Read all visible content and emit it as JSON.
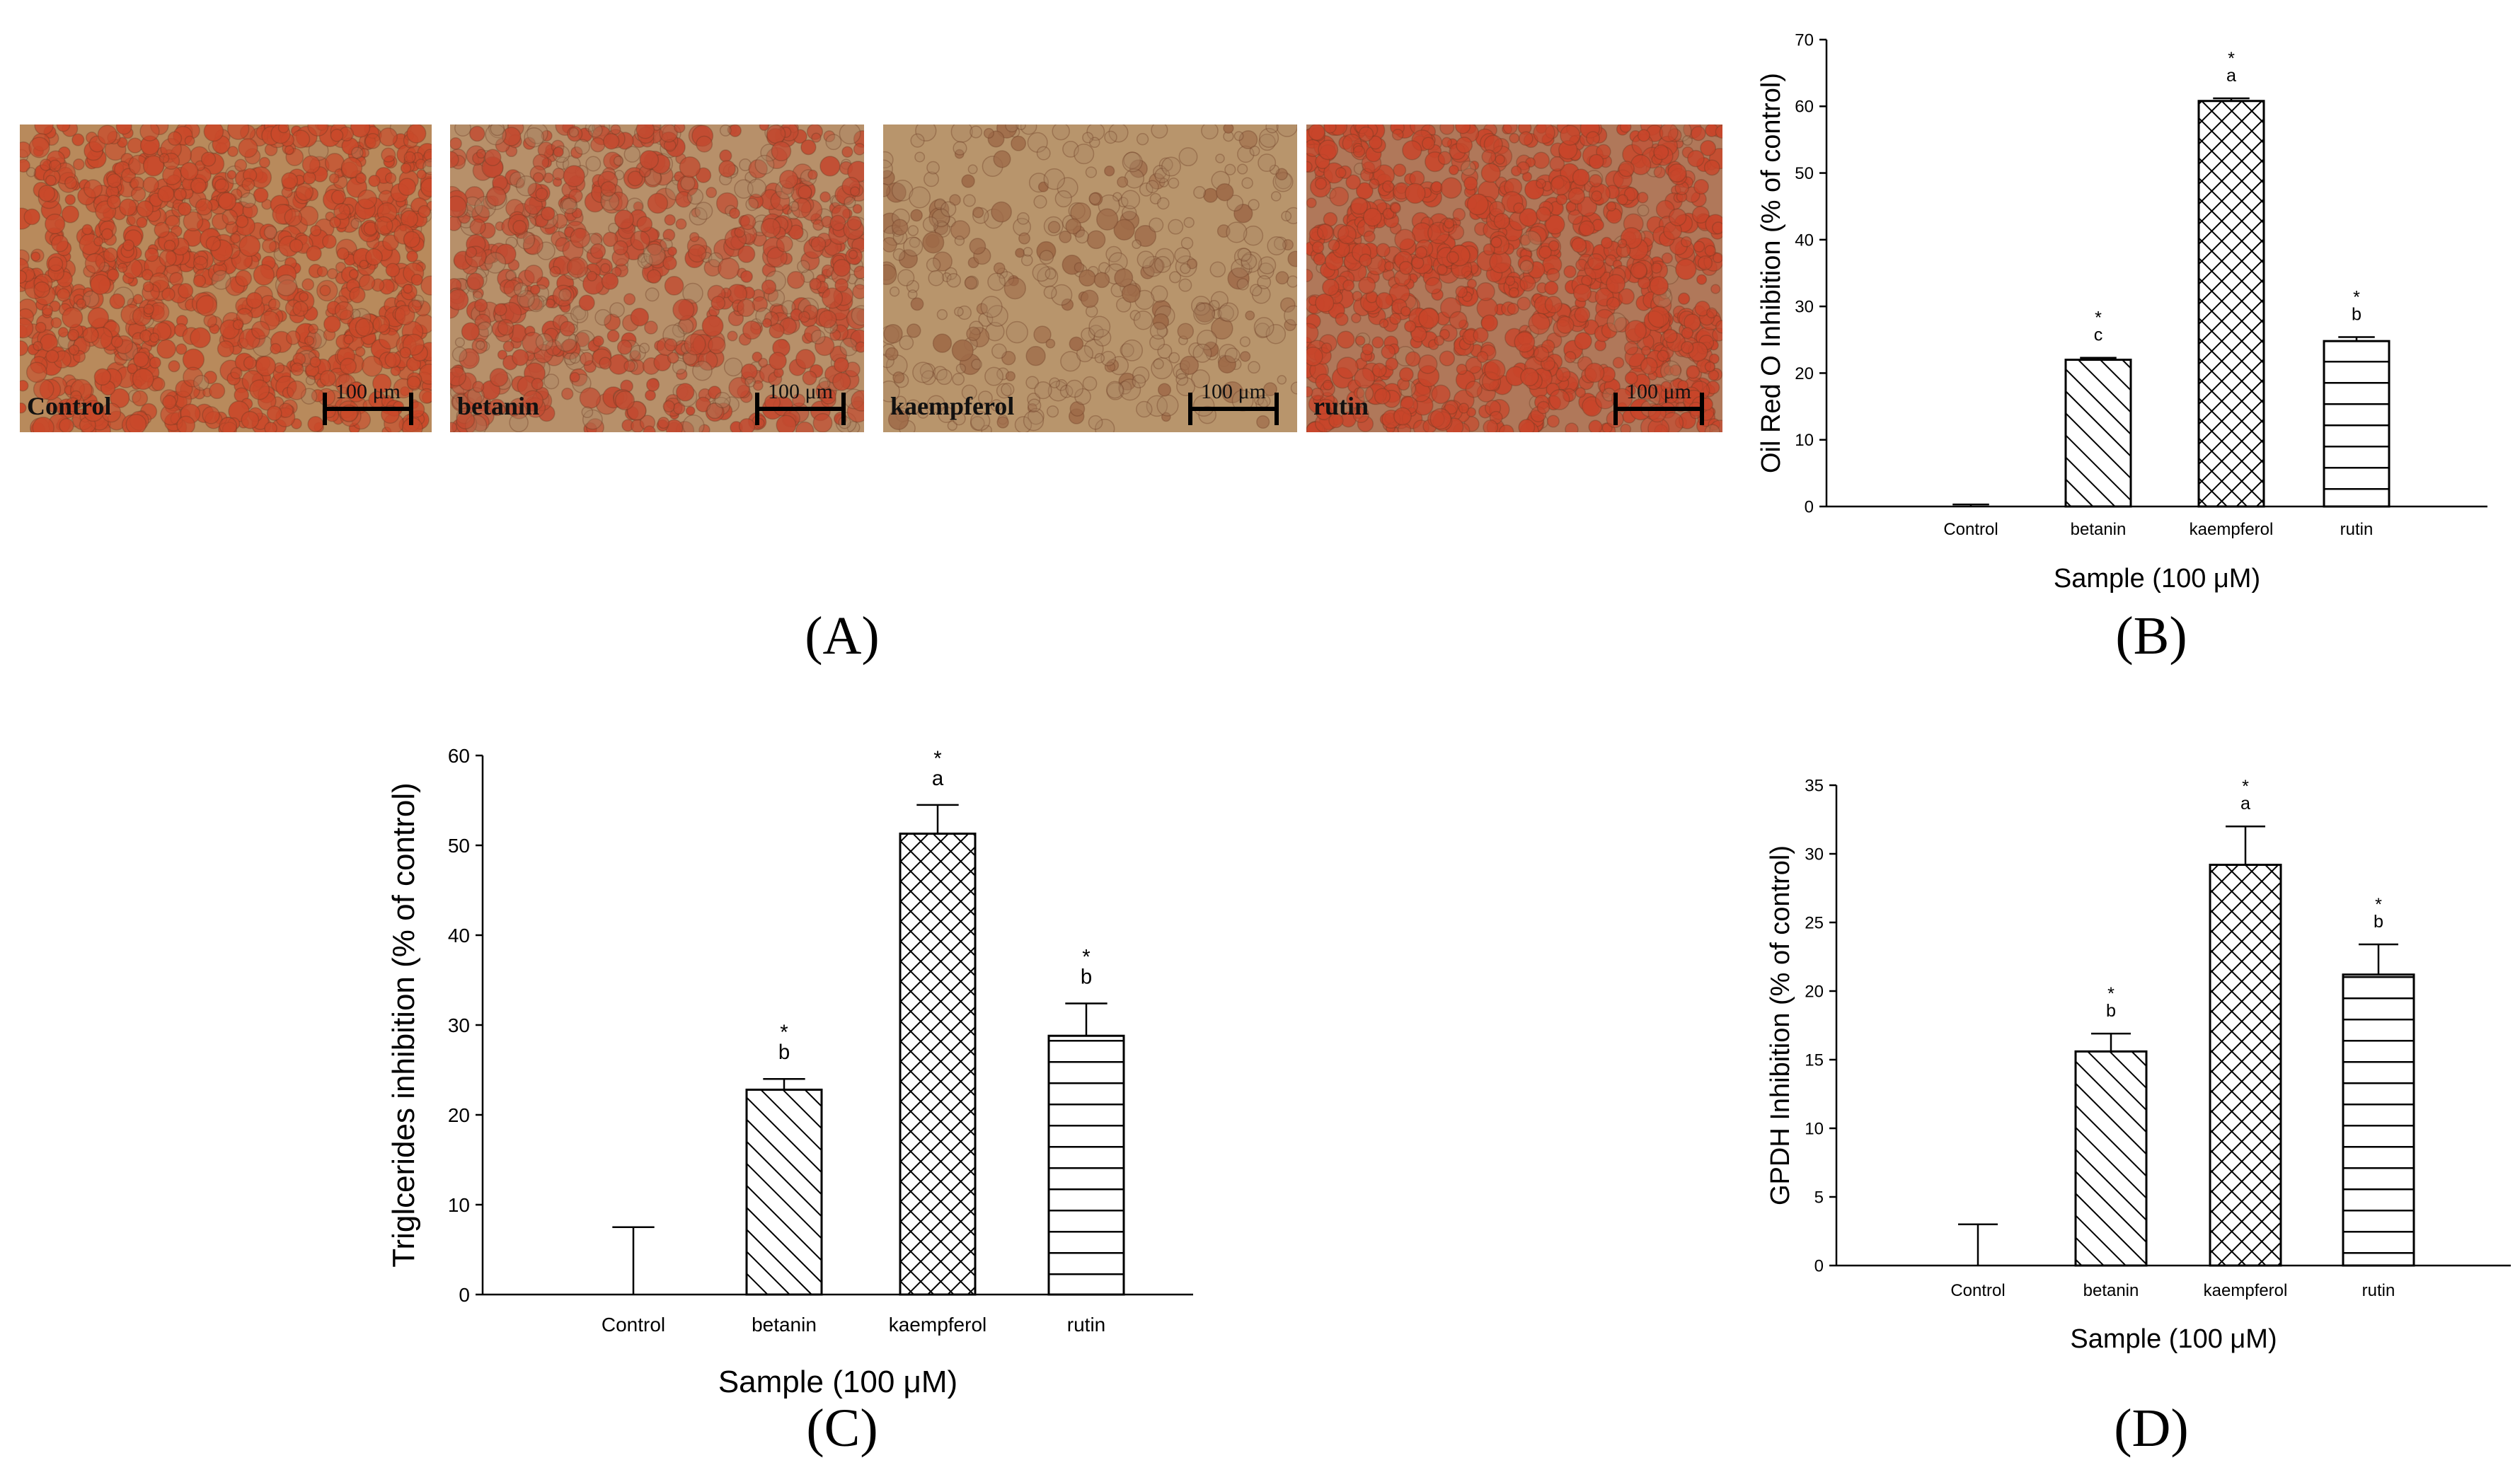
{
  "figure": {
    "panel_labels": [
      "(A)",
      "(B)",
      "(C)",
      "(D)"
    ],
    "micrographs": [
      {
        "label": "Control",
        "scale": "100 μm",
        "tone": "#c9492a",
        "bg": "#b88a5c",
        "density": 0.95
      },
      {
        "label": "betanin",
        "scale": "100 μm",
        "tone": "#c24a30",
        "bg": "#b7906a",
        "density": 0.75
      },
      {
        "label": "kaempferol",
        "scale": "100 μm",
        "tone": "#9e6a48",
        "bg": "#b8956c",
        "density": 0.3
      },
      {
        "label": "rutin",
        "scale": "100 μm",
        "tone": "#c8452a",
        "bg": "#b0785a",
        "density": 0.95
      }
    ]
  },
  "chart_data": [
    {
      "panel": "B",
      "type": "bar",
      "categories": [
        "Control",
        "betanin",
        "kaempferol",
        "rutin"
      ],
      "values": [
        0,
        22,
        60.8,
        24.8
      ],
      "errors": [
        0.3,
        0.3,
        0.4,
        0.6
      ],
      "significance": [
        "",
        "*",
        "*",
        "*"
      ],
      "letters": [
        "",
        "c",
        "a",
        "b"
      ],
      "patterns": [
        "none",
        "diagonal",
        "crosshatch",
        "horizontal"
      ],
      "xlabel": "Sample (100 μM)",
      "ylabel": "Oil Red O Inhibition (% of control)",
      "ylim": [
        0,
        70
      ],
      "yticks": [
        0,
        10,
        20,
        30,
        40,
        50,
        60,
        70
      ],
      "grid": false
    },
    {
      "panel": "C",
      "type": "bar",
      "categories": [
        "Control",
        "betanin",
        "kaempferol",
        "rutin"
      ],
      "values": [
        0,
        22.8,
        51.3,
        28.8
      ],
      "errors": [
        7.5,
        1.2,
        3.2,
        3.6
      ],
      "significance": [
        "",
        "*",
        "*",
        "*"
      ],
      "letters": [
        "",
        "b",
        "a",
        "b"
      ],
      "patterns": [
        "none",
        "diagonal",
        "crosshatch",
        "horizontal"
      ],
      "xlabel": "Sample (100 μM)",
      "ylabel": "Triglcerides inhibition (% of control)",
      "ylim": [
        0,
        60
      ],
      "yticks": [
        0,
        10,
        20,
        30,
        40,
        50,
        60
      ],
      "grid": false
    },
    {
      "panel": "D",
      "type": "bar",
      "categories": [
        "Control",
        "betanin",
        "kaempferol",
        "rutin"
      ],
      "values": [
        0,
        15.6,
        29.2,
        21.2
      ],
      "errors": [
        3.0,
        1.3,
        2.8,
        2.2
      ],
      "significance": [
        "",
        "*",
        "*",
        "*"
      ],
      "letters": [
        "",
        "b",
        "a",
        "b"
      ],
      "patterns": [
        "none",
        "diagonal",
        "crosshatch",
        "horizontal"
      ],
      "xlabel": "Sample (100 μM)",
      "ylabel": "GPDH Inhibition (% of control)",
      "ylim": [
        0,
        35
      ],
      "yticks": [
        0,
        5,
        10,
        15,
        20,
        25,
        30,
        35
      ],
      "grid": false
    }
  ]
}
